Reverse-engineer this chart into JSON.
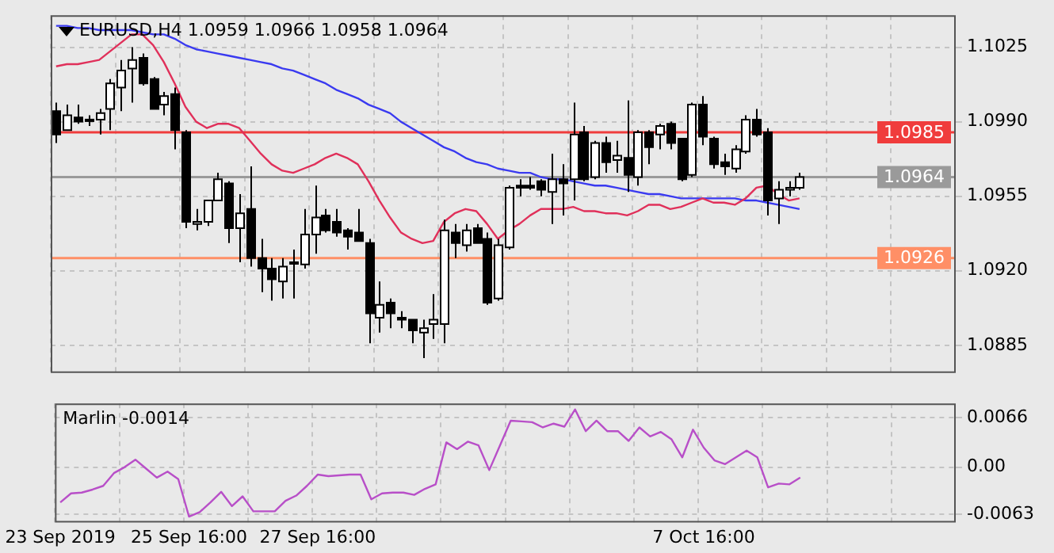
{
  "chart_data": [
    {
      "type": "candlestick",
      "title": "EURUSD,H4 1.0959 1.0966 1.0958 1.0964",
      "tick_labels": "y",
      "grid": true,
      "legend": false,
      "categories": [
        null,
        null,
        null,
        null,
        null,
        null,
        null,
        null,
        null,
        null,
        null,
        null,
        null,
        null,
        null,
        null,
        null,
        null,
        null,
        null,
        null,
        null,
        null,
        null,
        null,
        null,
        null,
        null,
        null,
        null,
        null,
        null,
        null,
        null,
        null,
        null,
        null,
        null,
        null,
        null,
        null,
        null,
        null,
        null,
        null,
        null,
        null,
        null,
        null,
        null,
        null,
        null,
        null,
        null,
        null,
        null,
        null,
        null,
        null,
        null,
        null,
        null,
        null,
        null,
        null,
        null,
        null,
        null,
        null,
        null,
        null,
        null,
        null,
        null,
        null,
        null,
        null,
        null,
        null,
        null,
        null,
        null,
        null,
        null
      ],
      "ohlc": [
        [
          1.0995,
          1.0999,
          1.098,
          1.0984
        ],
        [
          1.0986,
          1.0998,
          1.0986,
          1.0993
        ],
        [
          1.0992,
          1.0998,
          1.0989,
          1.099
        ],
        [
          1.0991,
          1.0993,
          1.0988,
          1.0991
        ],
        [
          1.0991,
          1.0996,
          1.0984,
          1.0994
        ],
        [
          1.0996,
          1.101,
          1.0986,
          1.1008
        ],
        [
          1.1006,
          1.1019,
          1.0995,
          1.1014
        ],
        [
          1.1015,
          1.1025,
          1.0999,
          1.1019
        ],
        [
          1.102,
          1.1022,
          1.1007,
          1.1008
        ],
        [
          1.101,
          1.1011,
          1.0996,
          1.0996
        ],
        [
          1.0998,
          1.1004,
          1.0993,
          1.1002
        ],
        [
          1.1003,
          1.1006,
          1.0977,
          1.0986
        ],
        [
          1.0985,
          1.0986,
          1.094,
          1.0943
        ],
        [
          1.0942,
          1.0949,
          1.0939,
          1.0943
        ],
        [
          1.0943,
          1.0953,
          1.0941,
          1.0953
        ],
        [
          1.0953,
          1.0966,
          1.0953,
          1.0963
        ],
        [
          1.0961,
          1.0962,
          1.0933,
          1.094
        ],
        [
          1.094,
          1.0956,
          1.0924,
          1.0947
        ],
        [
          1.0949,
          1.0969,
          1.0922,
          1.0926
        ],
        [
          1.0926,
          1.0935,
          1.091,
          1.0921
        ],
        [
          1.0921,
          1.0926,
          1.0906,
          1.0916
        ],
        [
          1.0915,
          1.0926,
          1.0907,
          1.0922
        ],
        [
          1.0924,
          1.093,
          1.0907,
          1.0924
        ],
        [
          1.0923,
          1.0949,
          1.0921,
          1.0937
        ],
        [
          1.0937,
          1.096,
          1.0928,
          1.0945
        ],
        [
          1.0946,
          1.0949,
          1.0938,
          1.0939
        ],
        [
          1.0943,
          1.0949,
          1.0936,
          1.0938
        ],
        [
          1.0939,
          1.094,
          1.093,
          1.0936
        ],
        [
          1.0938,
          1.0949,
          1.0934,
          1.0934
        ],
        [
          1.0933,
          1.0935,
          1.0886,
          1.09
        ],
        [
          1.0898,
          1.0915,
          1.0891,
          1.0904
        ],
        [
          1.0905,
          1.0907,
          1.0893,
          1.09
        ],
        [
          1.0898,
          1.0901,
          1.0893,
          1.0897
        ],
        [
          1.0897,
          1.0897,
          1.0886,
          1.0892
        ],
        [
          1.0891,
          1.0897,
          1.0879,
          1.0893
        ],
        [
          1.0895,
          1.0909,
          1.0888,
          1.0897
        ],
        [
          1.0895,
          1.0944,
          1.0886,
          1.0939
        ],
        [
          1.0938,
          1.0942,
          1.0926,
          1.0933
        ],
        [
          1.0932,
          1.0942,
          1.0929,
          1.0939
        ],
        [
          1.094,
          1.0942,
          1.0933,
          1.0933
        ],
        [
          1.0935,
          1.0938,
          1.0904,
          1.0905
        ],
        [
          1.0907,
          1.0935,
          1.0906,
          1.0932
        ],
        [
          1.0931,
          1.096,
          1.093,
          1.0959
        ],
        [
          1.096,
          1.0963,
          1.0955,
          1.0959
        ],
        [
          1.096,
          1.0964,
          1.0958,
          1.0959
        ],
        [
          1.0962,
          1.0963,
          1.0955,
          1.0958
        ],
        [
          1.0957,
          1.0975,
          1.0942,
          1.0963
        ],
        [
          1.0963,
          1.097,
          1.0946,
          1.0961
        ],
        [
          1.0963,
          1.0999,
          1.0953,
          1.0984
        ],
        [
          1.0985,
          1.0988,
          1.0962,
          1.0963
        ],
        [
          1.0964,
          1.0981,
          1.0963,
          1.098
        ],
        [
          1.098,
          1.0983,
          1.0966,
          1.0971
        ],
        [
          1.0972,
          1.0981,
          1.0966,
          1.0974
        ],
        [
          1.0973,
          1.1,
          1.0957,
          1.0965
        ],
        [
          1.0964,
          1.0986,
          1.096,
          1.0985
        ],
        [
          1.0985,
          1.0986,
          1.097,
          1.0978
        ],
        [
          1.0984,
          1.0989,
          1.0977,
          1.0988
        ],
        [
          1.0989,
          1.099,
          1.0977,
          1.098
        ],
        [
          1.0982,
          1.0982,
          1.0962,
          1.0963
        ],
        [
          1.0965,
          1.0999,
          1.0964,
          1.0998
        ],
        [
          1.0998,
          1.1002,
          1.0979,
          1.0983
        ],
        [
          1.0982,
          1.0983,
          1.0968,
          1.097
        ],
        [
          1.0971,
          1.0975,
          1.0965,
          1.0969
        ],
        [
          1.0968,
          1.0979,
          1.0966,
          1.0977
        ],
        [
          1.0976,
          1.0993,
          1.0975,
          1.0991
        ],
        [
          1.0991,
          1.0996,
          1.0983,
          1.0984
        ],
        [
          1.0985,
          1.0987,
          1.0946,
          1.0953
        ],
        [
          1.0954,
          1.0962,
          1.0942,
          1.0958
        ],
        [
          1.0958,
          1.0962,
          1.0955,
          1.0959
        ],
        [
          1.0959,
          1.0966,
          1.0958,
          1.0964
        ],
        null,
        null,
        null,
        null,
        null,
        null,
        null,
        null,
        null,
        null,
        null,
        null,
        null,
        null
      ],
      "series": [
        {
          "type": "line",
          "color": "#e0305a",
          "values": [
            1.1016,
            1.1017,
            1.1017,
            1.1018,
            1.1019,
            1.1023,
            1.1027,
            1.1031,
            1.1031,
            1.1026,
            1.1018,
            1.1008,
            1.0997,
            1.099,
            1.0987,
            1.0989,
            1.0989,
            1.0987,
            1.0981,
            1.0975,
            1.097,
            1.0967,
            1.0966,
            1.0968,
            1.097,
            1.0973,
            1.0975,
            1.0973,
            1.097,
            1.0962,
            1.0953,
            1.0945,
            1.0938,
            1.0935,
            1.0933,
            1.0934,
            1.0943,
            1.0947,
            1.0949,
            1.0948,
            1.0942,
            1.0935,
            1.0939,
            1.0942,
            1.0946,
            1.0949,
            1.0949,
            1.0949,
            1.095,
            1.0948,
            1.0948,
            1.0947,
            1.0947,
            1.0946,
            1.0948,
            1.0951,
            1.0951,
            1.0949,
            1.095,
            1.0952,
            1.0954,
            1.0952,
            1.0952,
            1.0951,
            1.0954,
            1.0959,
            1.096,
            1.0956,
            1.0953,
            1.0954,
            null,
            null,
            null,
            null,
            null,
            null,
            null,
            null,
            null,
            null,
            null,
            null,
            null,
            null
          ]
        },
        {
          "type": "line",
          "color": "#3a3af0",
          "values": [
            1.1035,
            1.1035,
            1.1034,
            1.1034,
            1.1033,
            1.1033,
            1.1033,
            1.1033,
            1.1032,
            1.1031,
            1.1031,
            1.1029,
            1.1026,
            1.1024,
            1.1023,
            1.1022,
            1.1021,
            1.102,
            1.1019,
            1.1018,
            1.1017,
            1.1015,
            1.1014,
            1.1012,
            1.101,
            1.1008,
            1.1005,
            1.1003,
            1.1001,
            1.0998,
            1.0996,
            1.0994,
            1.099,
            1.0987,
            1.0984,
            1.0981,
            1.0978,
            1.0976,
            1.0973,
            1.0971,
            1.097,
            1.0968,
            1.0967,
            1.0966,
            1.0966,
            1.0964,
            1.0963,
            1.0963,
            1.0962,
            1.0961,
            1.096,
            1.096,
            1.0959,
            1.0958,
            1.0957,
            1.0956,
            1.0956,
            1.0955,
            1.0954,
            1.0954,
            1.0954,
            1.0954,
            1.0954,
            1.0954,
            1.0953,
            1.0953,
            1.0952,
            1.0951,
            1.095,
            1.0949,
            null,
            null,
            null,
            null,
            null,
            null,
            null,
            null,
            null,
            null,
            null,
            null,
            null,
            null
          ]
        }
      ],
      "ylim": [
        1.0872,
        1.104
      ],
      "yticks": [
        1.1025,
        {
          "value": 1.099,
          "label": "1.0990"
        },
        1.0955,
        {
          "value": 1.092,
          "label": "1.0920"
        },
        1.0885
      ],
      "ref_lines": [
        {
          "axis": "y",
          "value": 1.0985,
          "label": "1.0985",
          "color": "#f03c3c"
        },
        {
          "axis": "y",
          "value": 1.0926,
          "label": "1.0926",
          "color": "#ff8f66"
        },
        {
          "axis": "y",
          "value": 1.0964,
          "label": "1.0964",
          "color": "#9a9a9a"
        }
      ]
    },
    {
      "type": "line",
      "title": "Marlin -0.0014",
      "grid": true,
      "legend": false,
      "categories": [
        "23 Sep 2019",
        null,
        null,
        null,
        null,
        null,
        null,
        null,
        null,
        null,
        null,
        null,
        "25 Sep 16:00",
        null,
        null,
        null,
        null,
        null,
        null,
        null,
        null,
        null,
        null,
        null,
        "27 Sep 16:00",
        null,
        null,
        null,
        null,
        null,
        null,
        null,
        null,
        null,
        null,
        null,
        null,
        null,
        null,
        null,
        null,
        null,
        null,
        null,
        null,
        null,
        null,
        null,
        null,
        null,
        null,
        null,
        null,
        null,
        null,
        null,
        null,
        null,
        null,
        null,
        "7 Oct 16:00",
        null,
        null,
        null,
        null,
        null,
        null,
        null,
        null,
        null,
        null,
        null,
        null,
        null,
        null,
        null,
        null,
        null,
        null,
        null,
        null,
        null,
        null,
        null
      ],
      "series": [
        {
          "color": "#b84fc8",
          "values": [
            -0.0047,
            -0.0035,
            -0.0034,
            -0.003,
            -0.0025,
            -0.0008,
            0.0,
            0.001,
            -0.0002,
            -0.0014,
            -0.0006,
            -0.0016,
            -0.0066,
            -0.006,
            -0.0047,
            -0.0033,
            -0.0052,
            -0.0039,
            -0.0059,
            -0.0059,
            -0.0059,
            -0.0045,
            -0.0038,
            -0.0025,
            -0.001,
            -0.0012,
            -0.0011,
            -0.001,
            -0.001,
            -0.0043,
            -0.0035,
            -0.0034,
            -0.0034,
            -0.0037,
            -0.0029,
            -0.0023,
            0.0033,
            0.0024,
            0.0034,
            0.0029,
            -0.0004,
            0.0029,
            0.0062,
            0.0061,
            0.006,
            0.0053,
            0.0058,
            0.0054,
            0.0077,
            0.0048,
            0.0062,
            0.0048,
            0.0048,
            0.0035,
            0.0053,
            0.0041,
            0.0047,
            0.0037,
            0.0013,
            0.005,
            0.0026,
            0.0009,
            0.0004,
            0.0013,
            0.0022,
            0.0013,
            -0.0027,
            -0.0022,
            -0.0023,
            -0.0014,
            null,
            null,
            null,
            null,
            null,
            null,
            null,
            null,
            null,
            null,
            null,
            null,
            null,
            null
          ]
        }
      ],
      "ylim": [
        -0.0074,
        0.0085
      ],
      "yticks": [
        {
          "value": 0.0066,
          "label": "0.0066"
        },
        {
          "value": 0,
          "label": "0.00"
        },
        {
          "value": -0.0063,
          "label": "-0.0063"
        }
      ]
    }
  ]
}
